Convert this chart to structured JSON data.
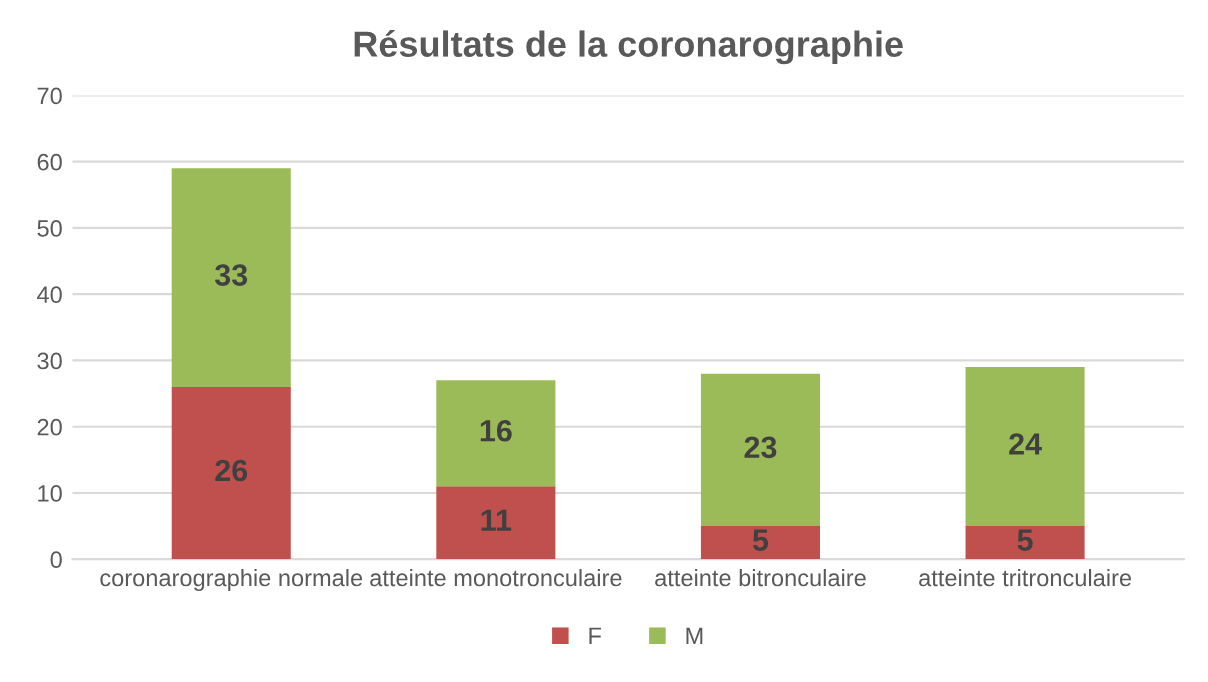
{
  "chart_data": {
    "type": "bar",
    "title": "Résultats de la coronarographie",
    "categories": [
      "coronarographie normale",
      "atteinte monotronculaire",
      "atteinte bitronculaire",
      "atteinte tritronculaire"
    ],
    "series": [
      {
        "name": "F",
        "color": "#c0504d",
        "values": [
          26,
          11,
          5,
          5
        ]
      },
      {
        "name": "M",
        "color": "#9bbb59",
        "values": [
          33,
          16,
          23,
          24
        ]
      }
    ],
    "stacked": true,
    "ylim": [
      0,
      70
    ],
    "yticks": [
      0,
      10,
      20,
      30,
      40,
      50,
      60,
      70
    ],
    "grid": "y",
    "legend": "bottom",
    "data_labels": true
  }
}
